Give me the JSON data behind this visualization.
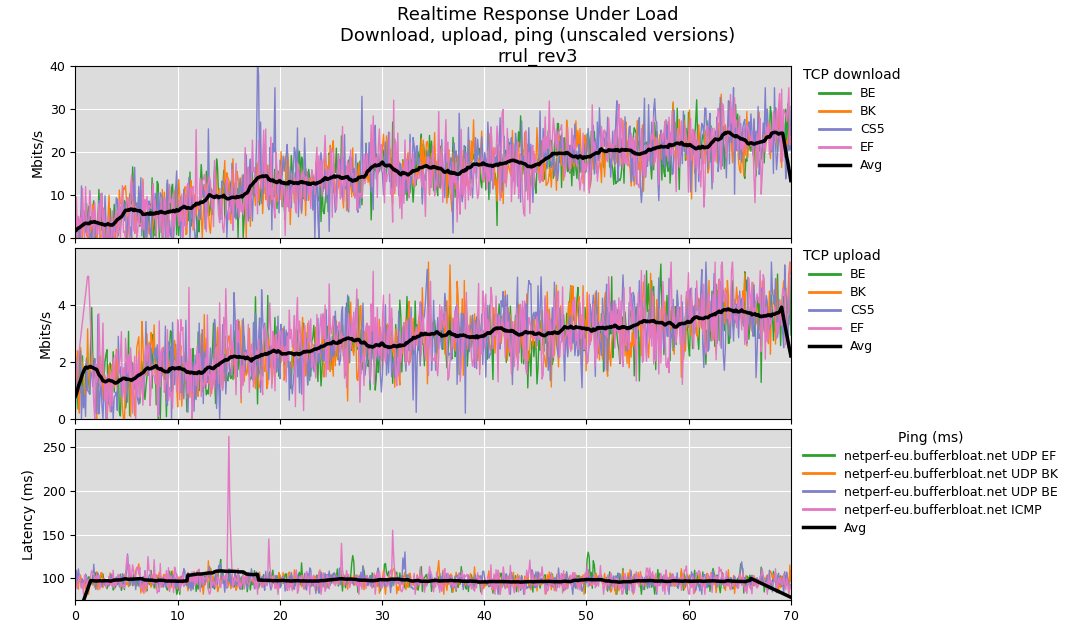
{
  "title": "Realtime Response Under Load\nDownload, upload, ping (unscaled versions)\nrrul_rev3",
  "title_fontsize": 13,
  "background_color": "#dcdcdc",
  "xlim": [
    0,
    70
  ],
  "dl_ylim": [
    0,
    40
  ],
  "ul_ylim": [
    0,
    6
  ],
  "ping_ylim": [
    75,
    270
  ],
  "dl_ylabel": "Mbits/s",
  "ul_ylabel": "Mbits/s",
  "ping_ylabel": "Latency (ms)",
  "dl_legend_title": "TCP download",
  "ul_legend_title": "TCP upload",
  "ping_legend_title": "Ping (ms)",
  "dl_legend_labels": [
    "BE",
    "BK",
    "CS5",
    "EF",
    "Avg"
  ],
  "ul_legend_labels": [
    "BE",
    "BK",
    "CS5",
    "EF",
    "Avg"
  ],
  "ping_legend_labels": [
    "netperf-eu.bufferbloat.net UDP EF",
    "netperf-eu.bufferbloat.net UDP BK",
    "netperf-eu.bufferbloat.net UDP BE",
    "netperf-eu.bufferbloat.net ICMP",
    "Avg"
  ],
  "colors_dl": [
    "#2ca02c",
    "#ff7f0e",
    "#7f7fcc",
    "#e377c2",
    "#000000"
  ],
  "colors_ul": [
    "#2ca02c",
    "#ff7f0e",
    "#7f7fcc",
    "#e377c2",
    "#000000"
  ],
  "colors_ping": [
    "#2ca02c",
    "#ff7f0e",
    "#7f7fcc",
    "#e377c2",
    "#000000"
  ],
  "lw_thin": 1.0,
  "lw_avg": 2.5,
  "dl_yticks": [
    0,
    10,
    20,
    30,
    40
  ],
  "ul_yticks": [
    0,
    2,
    4
  ],
  "ping_yticks": [
    100,
    150,
    200,
    250
  ],
  "xticks": [
    0,
    10,
    20,
    30,
    40,
    50,
    60,
    70
  ]
}
